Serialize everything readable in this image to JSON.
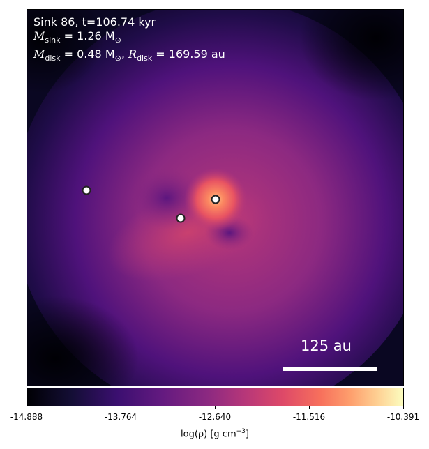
{
  "header": {
    "line1": "Sink 86, t=106.74 kyr",
    "m_sink_symbol": "M",
    "m_sink_sub": "sink",
    "m_sink_value": " = 1.26 M",
    "m_sink_unit_sub": "⊙",
    "m_disk_symbol": "M",
    "m_disk_sub": "disk",
    "m_disk_value": " = 0.48 M",
    "m_disk_unit_sub": "⊙",
    "r_disk_symbol": "R",
    "r_disk_sub": "disk",
    "r_disk_value": " = 169.59 au"
  },
  "scale_bar": {
    "label": "125 au"
  },
  "colorbar": {
    "ticks": [
      "-14.888",
      "-13.764",
      "-12.640",
      "-11.516",
      "-10.391"
    ],
    "label_prefix": "log(ρ) [g cm",
    "label_exp": "−3",
    "label_suffix": "]"
  },
  "colors": {
    "cmap": "magma"
  }
}
